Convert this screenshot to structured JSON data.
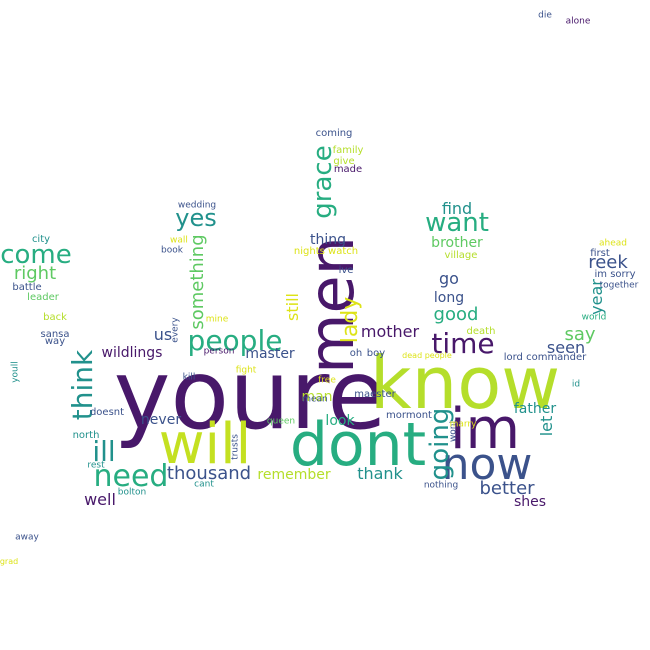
{
  "palette": {
    "purple": "#48186a",
    "indigo": "#3b528b",
    "teal": "#21918c",
    "green": "#27ad81",
    "lightgreen": "#5ec962",
    "lime": "#b5de2b",
    "yellow": "#dde318",
    "background": "#ffffff"
  },
  "words": [
    {
      "text": "youre",
      "color": "#48186a",
      "rotate": 0
    },
    {
      "text": "know",
      "color": "#b5de2b",
      "rotate": 0
    },
    {
      "text": "dont",
      "color": "#27ad81",
      "rotate": 0
    },
    {
      "text": "will",
      "color": "#c4e021",
      "rotate": 0
    },
    {
      "text": "men",
      "color": "#48186a",
      "rotate": -90
    },
    {
      "text": "im",
      "color": "#48186a",
      "rotate": 0
    },
    {
      "text": "now",
      "color": "#3b528b",
      "rotate": 0
    },
    {
      "text": "need",
      "color": "#27ad81",
      "rotate": 0
    },
    {
      "text": "ill",
      "color": "#21918c",
      "rotate": 0
    },
    {
      "text": "think",
      "color": "#21918c",
      "rotate": -90
    },
    {
      "text": "people",
      "color": "#27ad81",
      "rotate": 0
    },
    {
      "text": "time",
      "color": "#48186a",
      "rotate": 0
    },
    {
      "text": "going",
      "color": "#21918c",
      "rotate": -90
    },
    {
      "text": "grace",
      "color": "#27ad81",
      "rotate": -90
    },
    {
      "text": "come",
      "color": "#27ad81",
      "rotate": 0
    },
    {
      "text": "want",
      "color": "#27ad81",
      "rotate": 0
    },
    {
      "text": "yes",
      "color": "#21918c",
      "rotate": 0
    },
    {
      "text": "lady",
      "color": "#dde318",
      "rotate": -90
    },
    {
      "text": "right",
      "color": "#5ec962",
      "rotate": 0
    },
    {
      "text": "something",
      "color": "#5ec962",
      "rotate": -90
    },
    {
      "text": "thousand",
      "color": "#3b528b",
      "rotate": 0
    },
    {
      "text": "better",
      "color": "#3b528b",
      "rotate": 0
    },
    {
      "text": "mother",
      "color": "#48186a",
      "rotate": 0
    },
    {
      "text": "good",
      "color": "#27ad81",
      "rotate": 0
    },
    {
      "text": "say",
      "color": "#5ec962",
      "rotate": 0
    },
    {
      "text": "reek",
      "color": "#3b528b",
      "rotate": 0
    },
    {
      "text": "find",
      "color": "#21918c",
      "rotate": 0
    },
    {
      "text": "year",
      "color": "#21918c",
      "rotate": -90
    },
    {
      "text": "thank",
      "color": "#21918c",
      "rotate": 0
    },
    {
      "text": "seen",
      "color": "#3b528b",
      "rotate": 0
    },
    {
      "text": "go",
      "color": "#3b528b",
      "rotate": 0
    },
    {
      "text": "well",
      "color": "#48186a",
      "rotate": 0
    },
    {
      "text": "let",
      "color": "#21918c",
      "rotate": -90
    },
    {
      "text": "us",
      "color": "#3b528b",
      "rotate": 0
    },
    {
      "text": "brother",
      "color": "#5ec962",
      "rotate": 0
    },
    {
      "text": "wildlings",
      "color": "#48186a",
      "rotate": 0
    },
    {
      "text": "long",
      "color": "#3b528b",
      "rotate": 0
    },
    {
      "text": "thing",
      "color": "#3b528b",
      "rotate": 0
    },
    {
      "text": "remember",
      "color": "#b5de2b",
      "rotate": 0
    },
    {
      "text": "man",
      "color": "#b5de2b",
      "rotate": 0
    },
    {
      "text": "master",
      "color": "#3b528b",
      "rotate": 0
    },
    {
      "text": "look",
      "color": "#27ad81",
      "rotate": 0
    },
    {
      "text": "shes",
      "color": "#48186a",
      "rotate": 0
    },
    {
      "text": "father",
      "color": "#21918c",
      "rotate": 0
    },
    {
      "text": "never",
      "color": "#3b528b",
      "rotate": 0
    },
    {
      "text": "still",
      "color": "#dde318",
      "rotate": -90
    },
    {
      "text": "north",
      "color": "#21918c",
      "rotate": 0
    },
    {
      "text": "doesnt",
      "color": "#3b528b",
      "rotate": 0
    },
    {
      "text": "lord commander",
      "color": "#3b528b",
      "rotate": 0
    },
    {
      "text": "mormont",
      "color": "#3b528b",
      "rotate": 0
    },
    {
      "text": "maester",
      "color": "#3b528b",
      "rotate": 0
    },
    {
      "text": "battle",
      "color": "#3b528b",
      "rotate": 0
    },
    {
      "text": "city",
      "color": "#21918c",
      "rotate": 0
    },
    {
      "text": "leader",
      "color": "#5ec962",
      "rotate": 0
    },
    {
      "text": "back",
      "color": "#b5de2b",
      "rotate": 0
    },
    {
      "text": "sansa",
      "color": "#3b528b",
      "rotate": 0
    },
    {
      "text": "way",
      "color": "#3b528b",
      "rotate": 0
    },
    {
      "text": "youll",
      "color": "#21918c",
      "rotate": -90
    },
    {
      "text": "coming",
      "color": "#3b528b",
      "rotate": 0
    },
    {
      "text": "family",
      "color": "#b5de2b",
      "rotate": 0
    },
    {
      "text": "give",
      "color": "#b5de2b",
      "rotate": 0
    },
    {
      "text": "made",
      "color": "#48186a",
      "rotate": 0
    },
    {
      "text": "wedding",
      "color": "#3b528b",
      "rotate": 0
    },
    {
      "text": "wall",
      "color": "#dde318",
      "rotate": 0
    },
    {
      "text": "book",
      "color": "#3b528b",
      "rotate": 0
    },
    {
      "text": "nights watch",
      "color": "#dde318",
      "rotate": 0
    },
    {
      "text": "village",
      "color": "#b5de2b",
      "rotate": 0
    },
    {
      "text": "ive",
      "color": "#3b528b",
      "rotate": 0
    },
    {
      "text": "ahead",
      "color": "#dde318",
      "rotate": 0
    },
    {
      "text": "first",
      "color": "#3b528b",
      "rotate": 0
    },
    {
      "text": "im sorry",
      "color": "#3b528b",
      "rotate": 0
    },
    {
      "text": "together",
      "color": "#3b528b",
      "rotate": 0
    },
    {
      "text": "death",
      "color": "#b5de2b",
      "rotate": 0
    },
    {
      "text": "boy",
      "color": "#3b528b",
      "rotate": 0
    },
    {
      "text": "oh",
      "color": "#3b528b",
      "rotate": 0
    },
    {
      "text": "dead people",
      "color": "#dde318",
      "rotate": 0
    },
    {
      "text": "person",
      "color": "#48186a",
      "rotate": 0
    },
    {
      "text": "every",
      "color": "#3b528b",
      "rotate": -90
    },
    {
      "text": "mine",
      "color": "#dde318",
      "rotate": 0
    },
    {
      "text": "queen",
      "color": "#5ec962",
      "rotate": 0
    },
    {
      "text": "free",
      "color": "#dde318",
      "rotate": 0
    },
    {
      "text": "mean",
      "color": "#3b528b",
      "rotate": 0
    },
    {
      "text": "fight",
      "color": "#dde318",
      "rotate": 0
    },
    {
      "text": "kill",
      "color": "#3b528b",
      "rotate": 0
    },
    {
      "text": "wont",
      "color": "#3b528b",
      "rotate": -90
    },
    {
      "text": "marry",
      "color": "#dde318",
      "rotate": 0
    },
    {
      "text": "nothing",
      "color": "#3b528b",
      "rotate": 0
    },
    {
      "text": "cant",
      "color": "#21918c",
      "rotate": 0
    },
    {
      "text": "bolton",
      "color": "#21918c",
      "rotate": 0
    },
    {
      "text": "rest",
      "color": "#21918c",
      "rotate": 0
    },
    {
      "text": "trusts",
      "color": "#3b528b",
      "rotate": -90
    },
    {
      "text": "id",
      "color": "#21918c",
      "rotate": 0
    },
    {
      "text": "world",
      "color": "#27ad81",
      "rotate": 0
    },
    {
      "text": "die",
      "color": "#3b528b",
      "rotate": 0
    },
    {
      "text": "alone",
      "color": "#48186a",
      "rotate": 0
    },
    {
      "text": "away",
      "color": "#3b528b",
      "rotate": 0
    },
    {
      "text": "grad",
      "color": "#dde318",
      "rotate": 0
    }
  ]
}
